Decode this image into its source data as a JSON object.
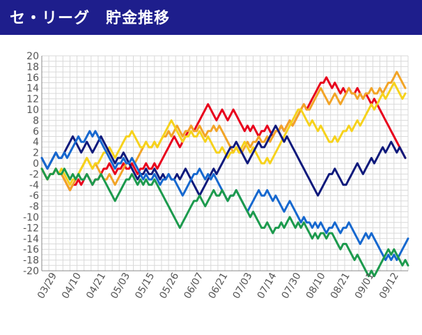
{
  "header": {
    "title": "セ・リーグ　貯金推移"
  },
  "chart_data": {
    "type": "line",
    "title": "セ・リーグ　貯金推移",
    "xlabel": "",
    "ylabel": "",
    "ylim": [
      -20,
      20
    ],
    "yticks": [
      20,
      18,
      16,
      14,
      12,
      10,
      8,
      6,
      4,
      2,
      0,
      -2,
      -4,
      -6,
      -8,
      -10,
      -12,
      -14,
      -16,
      -18,
      -20
    ],
    "x_tick_labels": [
      "03/29",
      "04/10",
      "04/21",
      "05/03",
      "05/15",
      "05/26",
      "06/07",
      "06/21",
      "07/03",
      "07/14",
      "07/30",
      "08/10",
      "08/21",
      "09/01",
      "09/12"
    ],
    "games": 130,
    "grid": true,
    "colors": {
      "header": "#1e1e8c",
      "grid": "#d9d9d9",
      "axis": "#888888",
      "tick_text": "#555555"
    },
    "series": [
      {
        "name": "red",
        "color": "#e8001c",
        "anchors": [
          [
            0,
            -1
          ],
          [
            8,
            -2
          ],
          [
            15,
            -3
          ],
          [
            22,
            -2
          ],
          [
            30,
            0
          ],
          [
            38,
            0
          ],
          [
            44,
            2
          ],
          [
            48,
            5
          ],
          [
            53,
            7
          ],
          [
            58,
            9
          ],
          [
            63,
            8
          ],
          [
            68,
            9
          ],
          [
            73,
            6
          ],
          [
            78,
            5
          ],
          [
            83,
            5
          ],
          [
            88,
            8
          ],
          [
            93,
            11
          ],
          [
            98,
            13
          ],
          [
            103,
            14
          ],
          [
            108,
            13
          ],
          [
            113,
            13
          ],
          [
            118,
            11
          ],
          [
            123,
            4
          ],
          [
            126,
            3
          ],
          [
            129,
            1
          ]
        ]
      },
      {
        "name": "orange",
        "color": "#f2a427",
        "anchors": [
          [
            0,
            -1
          ],
          [
            8,
            -2
          ],
          [
            15,
            -1
          ],
          [
            22,
            -3
          ],
          [
            30,
            0
          ],
          [
            37,
            3
          ],
          [
            43,
            5
          ],
          [
            48,
            7
          ],
          [
            53,
            6
          ],
          [
            58,
            5
          ],
          [
            63,
            7
          ],
          [
            68,
            2
          ],
          [
            73,
            3
          ],
          [
            78,
            4
          ],
          [
            83,
            5
          ],
          [
            88,
            8
          ],
          [
            93,
            11
          ],
          [
            98,
            12
          ],
          [
            103,
            11
          ],
          [
            108,
            13
          ],
          [
            113,
            12
          ],
          [
            118,
            13
          ],
          [
            123,
            15
          ],
          [
            127,
            17
          ],
          [
            129,
            15
          ]
        ]
      },
      {
        "name": "yellow",
        "color": "#f6d21c",
        "anchors": [
          [
            0,
            -1
          ],
          [
            8,
            -1
          ],
          [
            15,
            -1
          ],
          [
            22,
            1
          ],
          [
            30,
            5
          ],
          [
            35,
            3
          ],
          [
            41,
            3
          ],
          [
            46,
            7
          ],
          [
            51,
            4
          ],
          [
            56,
            5
          ],
          [
            61,
            3
          ],
          [
            67,
            2
          ],
          [
            72,
            3
          ],
          [
            77,
            1
          ],
          [
            82,
            0
          ],
          [
            86,
            5
          ],
          [
            91,
            10
          ],
          [
            96,
            7
          ],
          [
            101,
            5
          ],
          [
            106,
            4
          ],
          [
            111,
            6
          ],
          [
            116,
            10
          ],
          [
            121,
            12
          ],
          [
            124,
            13
          ],
          [
            129,
            12
          ]
        ]
      },
      {
        "name": "navy",
        "color": "#0f1a7c",
        "anchors": [
          [
            0,
            1
          ],
          [
            5,
            2
          ],
          [
            10,
            3
          ],
          [
            15,
            2
          ],
          [
            20,
            3
          ],
          [
            26,
            1
          ],
          [
            32,
            -1
          ],
          [
            38,
            -2
          ],
          [
            44,
            -3
          ],
          [
            50,
            -2
          ],
          [
            56,
            -5
          ],
          [
            62,
            -1
          ],
          [
            67,
            2
          ],
          [
            72,
            1
          ],
          [
            77,
            3
          ],
          [
            82,
            5
          ],
          [
            87,
            4
          ],
          [
            92,
            -2
          ],
          [
            97,
            -5
          ],
          [
            102,
            -3
          ],
          [
            107,
            -4
          ],
          [
            112,
            -1
          ],
          [
            117,
            1
          ],
          [
            121,
            3
          ],
          [
            124,
            4
          ],
          [
            127,
            2
          ],
          [
            129,
            2
          ]
        ]
      },
      {
        "name": "blue",
        "color": "#1668cf",
        "anchors": [
          [
            0,
            1
          ],
          [
            6,
            2
          ],
          [
            12,
            4
          ],
          [
            18,
            6
          ],
          [
            24,
            2
          ],
          [
            30,
            0
          ],
          [
            36,
            -2
          ],
          [
            42,
            -4
          ],
          [
            48,
            -3
          ],
          [
            54,
            -2
          ],
          [
            60,
            -3
          ],
          [
            66,
            -6
          ],
          [
            72,
            -8
          ],
          [
            77,
            -5
          ],
          [
            82,
            -7
          ],
          [
            87,
            -9
          ],
          [
            92,
            -11
          ],
          [
            97,
            -12
          ],
          [
            102,
            -13
          ],
          [
            107,
            -12
          ],
          [
            112,
            -14
          ],
          [
            116,
            -13
          ],
          [
            120,
            -15
          ],
          [
            124,
            -17
          ],
          [
            127,
            -18
          ],
          [
            130,
            -14
          ]
        ]
      },
      {
        "name": "green",
        "color": "#1c9a4d",
        "anchors": [
          [
            0,
            -1
          ],
          [
            6,
            -2
          ],
          [
            12,
            -3
          ],
          [
            18,
            -4
          ],
          [
            24,
            -4
          ],
          [
            30,
            -3
          ],
          [
            36,
            -3
          ],
          [
            42,
            -5
          ],
          [
            48,
            -10
          ],
          [
            54,
            -7
          ],
          [
            60,
            -6
          ],
          [
            66,
            -6
          ],
          [
            72,
            -8
          ],
          [
            77,
            -11
          ],
          [
            82,
            -13
          ],
          [
            87,
            -11
          ],
          [
            92,
            -12
          ],
          [
            97,
            -14
          ],
          [
            102,
            -14
          ],
          [
            107,
            -16
          ],
          [
            112,
            -18
          ],
          [
            116,
            -20
          ],
          [
            120,
            -19
          ],
          [
            124,
            -16
          ],
          [
            128,
            -19
          ],
          [
            130,
            -18
          ]
        ]
      }
    ]
  }
}
